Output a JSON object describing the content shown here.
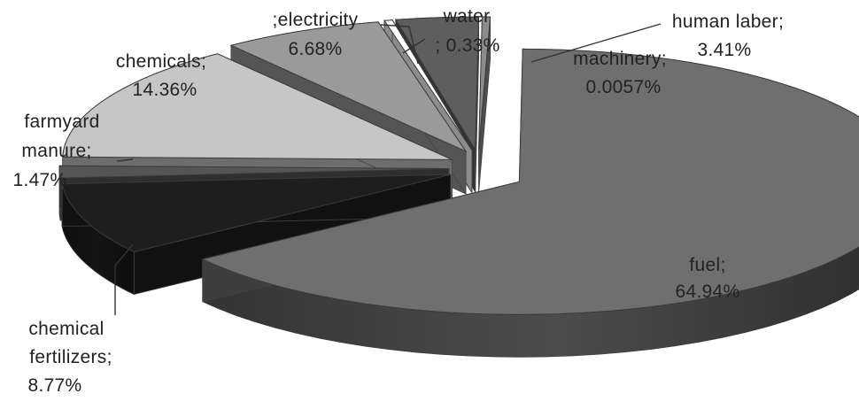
{
  "chart_data": {
    "type": "pie",
    "title": "",
    "style": "3d-exploded",
    "legend": "none",
    "slices": [
      {
        "label": "fuel;",
        "value": 64.94,
        "value_text": "64.94%",
        "color": "#6f6f6f"
      },
      {
        "label": "chemical fertilizers;",
        "value": 8.77,
        "value_text": "8.77%",
        "color": "#1e1e1e"
      },
      {
        "label": "farmyard manure;",
        "value": 1.47,
        "value_text": "1.47%",
        "color": "#555555"
      },
      {
        "label": "chemicals;",
        "value": 14.36,
        "value_text": "14.36%",
        "color": "#c6c6c6"
      },
      {
        "label": ";electricity",
        "value": 6.68,
        "value_text": "6.68%",
        "color": "#9a9a9a"
      },
      {
        "label": "water",
        "value": 0.33,
        "value_text": "; 0.33%",
        "color": "#ffffff"
      },
      {
        "label": "human laber;",
        "value": 3.41,
        "value_text": "3.41%",
        "color": "#5e5e5e"
      },
      {
        "label": "machinery;",
        "value": 0.0057,
        "value_text": "0.0057%",
        "color": "#8c8c8c"
      }
    ]
  }
}
